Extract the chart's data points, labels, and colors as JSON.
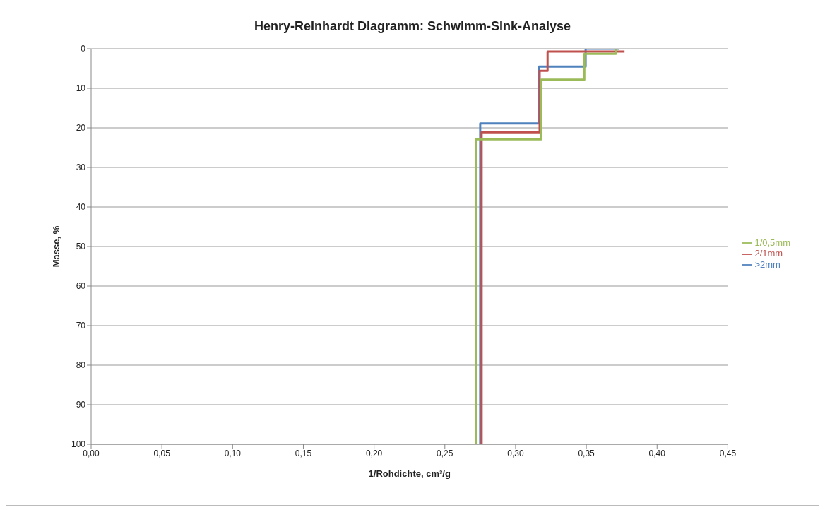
{
  "chart_data": {
    "type": "step",
    "title": "Henry-Reinhardt Diagramm: Schwimm-Sink-Analyse",
    "xlabel": "1/Rohdichte, cm³/g",
    "ylabel": "Masse, %",
    "series": [
      {
        "name": ">2mm",
        "color": "#4f81bd",
        "x": [
          0.275,
          0.3165,
          0.3495,
          0.3734
        ],
        "values": [
          100,
          18.9,
          4.5,
          0
        ]
      },
      {
        "name": "2/1mm",
        "color": "#c0504d",
        "x": [
          0.276,
          0.317,
          0.3226,
          0.377
        ],
        "values": [
          100,
          21.1,
          5.6,
          0.7
        ]
      },
      {
        "name": "1/0,5mm",
        "color": "#9bbb59",
        "x": [
          0.272,
          0.318,
          0.3486,
          0.3708,
          0.3708
        ],
        "values": [
          100,
          22.9,
          7.8,
          1.3,
          0
        ]
      }
    ],
    "xlim": [
      0,
      0.45
    ],
    "xticks": [
      {
        "value": 0,
        "label": "0,00"
      },
      {
        "value": 0.05,
        "label": "0,05"
      },
      {
        "value": 0.1,
        "label": "0,10"
      },
      {
        "value": 0.15,
        "label": "0,15"
      },
      {
        "value": 0.2,
        "label": "0,20"
      },
      {
        "value": 0.25,
        "label": "0,25"
      },
      {
        "value": 0.3,
        "label": "0,30"
      },
      {
        "value": 0.35,
        "label": "0,35"
      },
      {
        "value": 0.4,
        "label": "0,40"
      },
      {
        "value": 0.45,
        "label": "0,45"
      }
    ],
    "ylim": [
      100,
      0
    ],
    "yticks": [
      0,
      10,
      20,
      30,
      40,
      50,
      60,
      70,
      80,
      90,
      100
    ],
    "grid": "y",
    "legend": "right"
  }
}
